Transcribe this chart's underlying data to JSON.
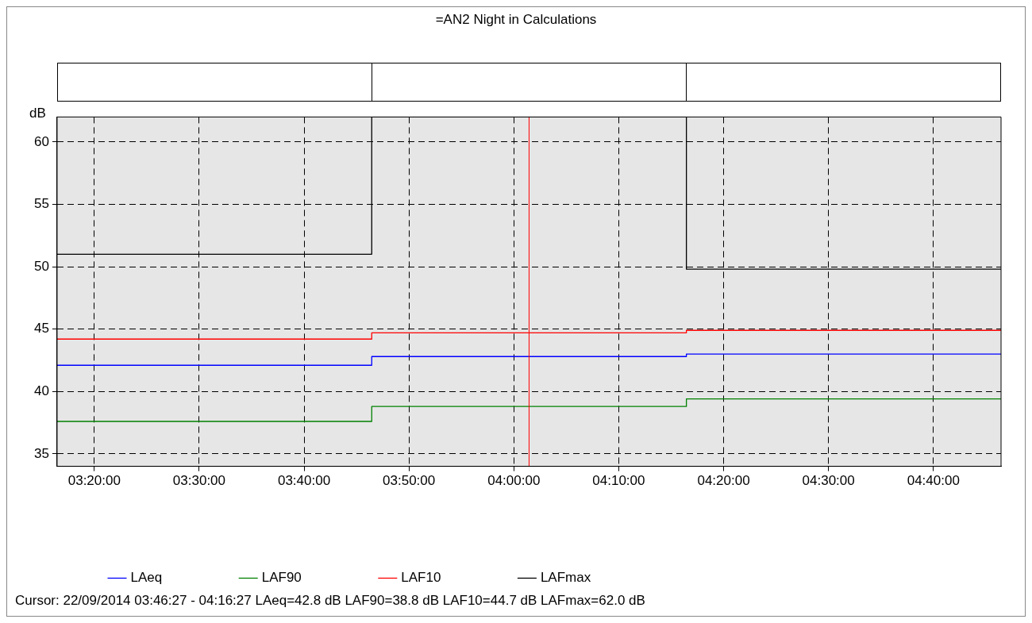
{
  "chart_data": {
    "type": "step",
    "title": "=AN2 Night in Calculations",
    "ylabel": "dB",
    "x": [
      3.274167,
      3.774167,
      4.274167,
      4.774167
    ],
    "series": [
      {
        "name": "LAeq",
        "color": "#0000ff",
        "values": [
          42.1,
          42.8,
          43.0,
          43.0
        ]
      },
      {
        "name": "LAF90",
        "color": "#008000",
        "values": [
          37.6,
          38.8,
          39.4,
          39.4
        ]
      },
      {
        "name": "LAF10",
        "color": "#ff0000",
        "values": [
          44.2,
          44.7,
          44.9,
          44.9
        ]
      },
      {
        "name": "LAFmax",
        "color": "#000000",
        "values": [
          51.0,
          62.0,
          49.8,
          49.8
        ]
      }
    ],
    "xlim": [
      3.274167,
      4.774167
    ],
    "xticks": [
      {
        "value": 3.333333,
        "label": "03:20:00"
      },
      {
        "value": 3.5,
        "label": "03:30:00"
      },
      {
        "value": 3.666667,
        "label": "03:40:00"
      },
      {
        "value": 3.833333,
        "label": "03:50:00"
      },
      {
        "value": 4.0,
        "label": "04:00:00"
      },
      {
        "value": 4.166667,
        "label": "04:10:00"
      },
      {
        "value": 4.333333,
        "label": "04:20:00"
      },
      {
        "value": 4.5,
        "label": "04:30:00"
      },
      {
        "value": 4.666667,
        "label": "04:40:00"
      }
    ],
    "ylim": [
      34,
      62
    ],
    "yticks": [
      35,
      40,
      45,
      50,
      55,
      60
    ],
    "ref_lines": [
      {
        "axis": "x",
        "value": 4.024167,
        "color": "#ff0000"
      }
    ],
    "grid": true,
    "legend": "bottom",
    "line_style": "solid",
    "marker": "none",
    "annotations": [
      "Cursor: 22/09/2014 03:46:27 - 04:16:27  LAeq=42.8 dB  LAF90=38.8 dB  LAF10=44.7 dB  LAFmax=62.0 dB"
    ]
  }
}
